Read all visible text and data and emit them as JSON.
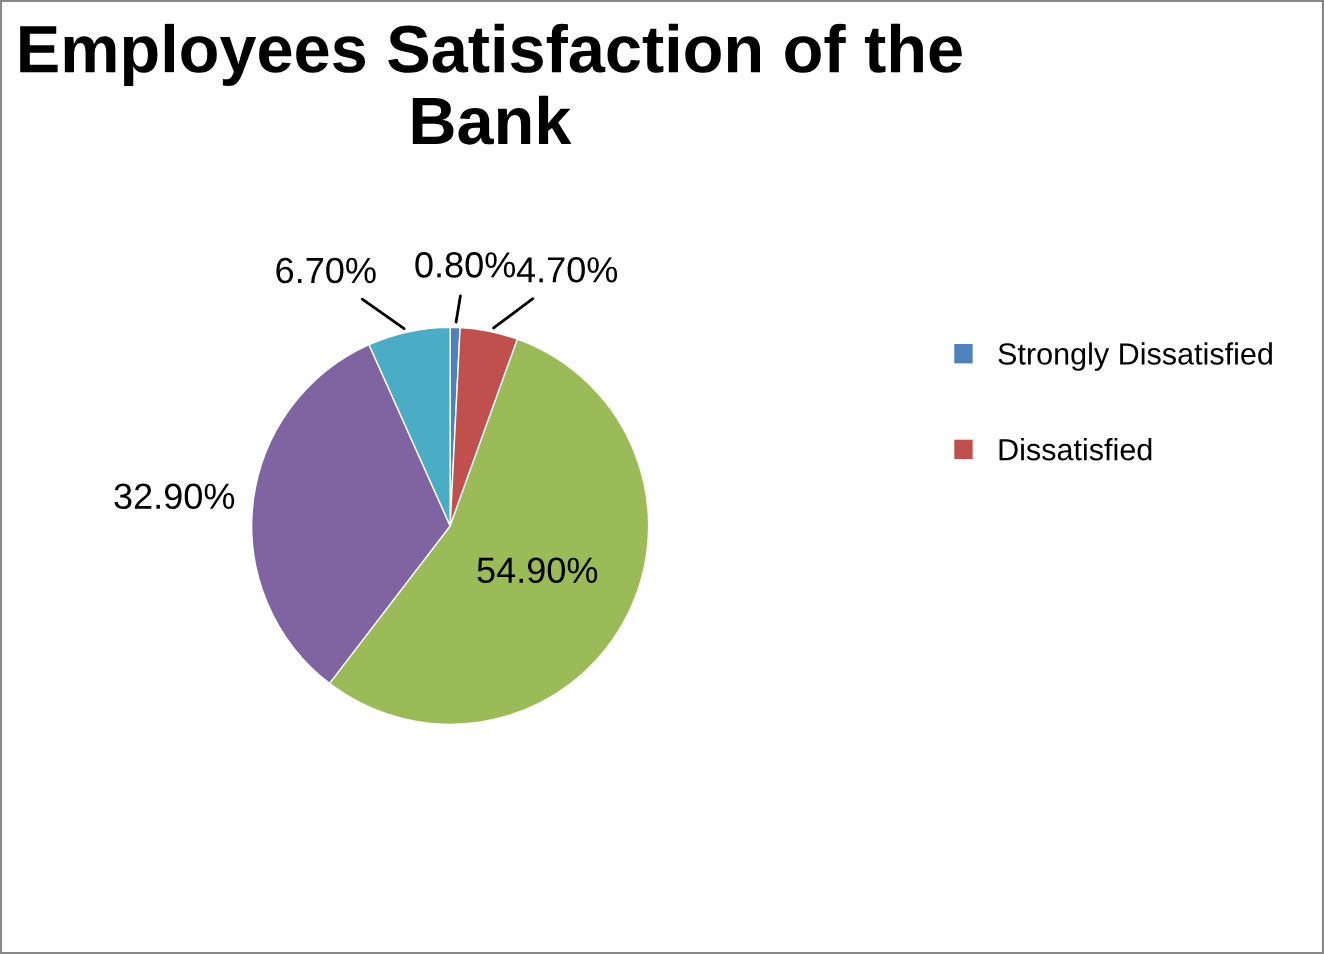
{
  "chart_data": {
    "type": "pie",
    "title": "Employees Satisfaction of the Bank",
    "categories": [
      "Strongly Dissatisfied",
      "Dissatisfied",
      null,
      null,
      null
    ],
    "values": [
      0.8,
      4.7,
      54.9,
      32.9,
      6.7
    ],
    "value_labels": [
      "0.80%",
      "4.70%",
      "54.90%",
      "32.90%",
      "6.70%"
    ],
    "colors": [
      "#4f81bd",
      "#c0504d",
      "#9bbb59",
      "#8064a2",
      "#4bacc6"
    ],
    "legend": "right"
  }
}
